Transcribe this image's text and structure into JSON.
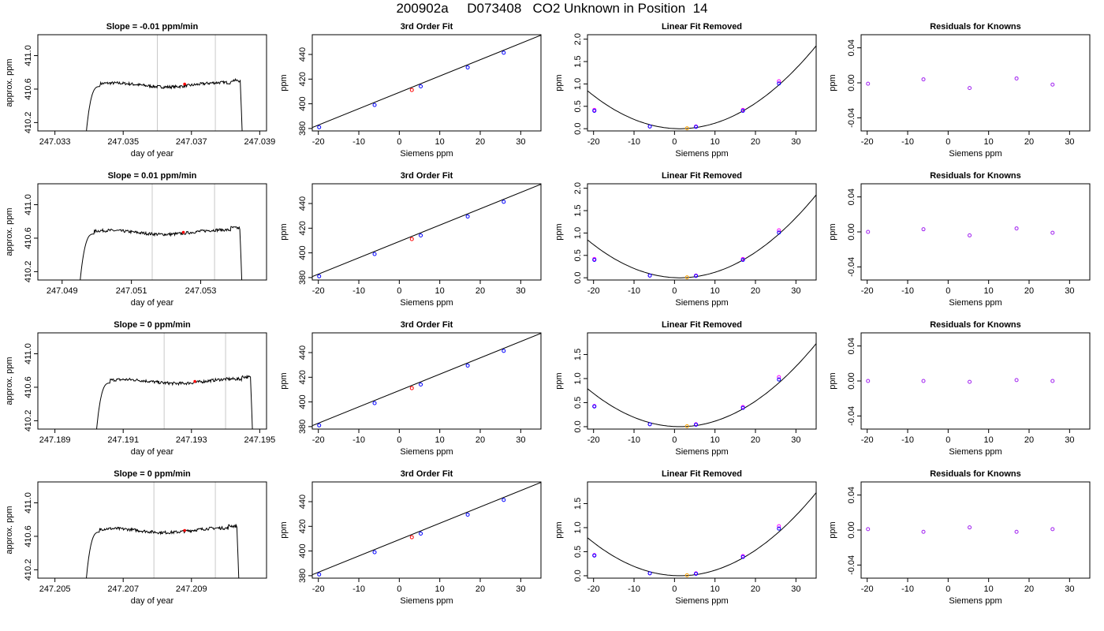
{
  "page_title": "200902a     D073408   CO2 Unknown in Position  14",
  "colors": {
    "trace": "#000000",
    "marker_line": "#c8c8c8",
    "known": "#0000ff",
    "unknown": "#ff0000",
    "residual": "#a020f0",
    "fit_point": "#ff00ff",
    "unknown_fit": "#ffa500"
  },
  "chart_data": [
    {
      "type": "line",
      "row": 1,
      "title": "Slope =  -0.01  ppm/min",
      "xlabel": "day of year",
      "ylabel": "approx. ppm",
      "xlim": [
        247.0325,
        247.0392
      ],
      "ylim": [
        410.1,
        411.25
      ],
      "xticks": [
        247.033,
        247.035,
        247.037,
        247.039
      ],
      "xtick_labels": [
        "247.033",
        "247.035",
        "247.037",
        "247.039"
      ],
      "yticks": [
        410.2,
        410.6,
        411.0
      ],
      "ytick_labels": [
        "410.2",
        "410.6",
        "411.0"
      ],
      "x_start": 247.0339,
      "x_end": 247.0385,
      "plateau": 410.65,
      "vlines": [
        247.036,
        247.0377
      ],
      "marker": {
        "x": 247.0368,
        "y": 410.66
      }
    },
    {
      "type": "line",
      "row": 2,
      "title": "Slope =  0.01  ppm/min",
      "xlabel": "day of year",
      "ylabel": "approx. ppm",
      "xlim": [
        247.0483,
        247.0549
      ],
      "ylim": [
        410.1,
        411.25
      ],
      "xticks": [
        247.049,
        247.051,
        247.053
      ],
      "xtick_labels": [
        "247.049",
        "247.051",
        "247.053"
      ],
      "yticks": [
        410.2,
        410.6,
        411.0
      ],
      "ytick_labels": [
        "410.2",
        "410.6",
        "411.0"
      ],
      "x_start": 247.0495,
      "x_end": 247.0542,
      "plateau": 410.67,
      "vlines": [
        247.0516,
        247.0534
      ],
      "marker": {
        "x": 247.0525,
        "y": 410.67
      }
    },
    {
      "type": "line",
      "row": 3,
      "title": "Slope =  0  ppm/min",
      "xlabel": "day of year",
      "ylabel": "approx. ppm",
      "xlim": [
        247.1885,
        247.1952
      ],
      "ylim": [
        410.1,
        411.25
      ],
      "xticks": [
        247.189,
        247.191,
        247.193,
        247.195
      ],
      "xtick_labels": [
        "247.189",
        "247.191",
        "247.193",
        "247.195"
      ],
      "yticks": [
        410.2,
        410.6,
        411.0
      ],
      "ytick_labels": [
        "410.2",
        "410.6",
        "411.0"
      ],
      "x_start": 247.1902,
      "x_end": 247.1948,
      "plateau": 410.67,
      "vlines": [
        247.1922,
        247.194
      ],
      "marker": {
        "x": 247.1931,
        "y": 410.67
      }
    },
    {
      "type": "line",
      "row": 4,
      "title": "Slope =  0  ppm/min",
      "xlabel": "day of year",
      "ylabel": "approx. ppm",
      "xlim": [
        247.2045,
        247.2112
      ],
      "ylim": [
        410.1,
        411.25
      ],
      "xticks": [
        247.205,
        247.207,
        247.209
      ],
      "xtick_labels": [
        "247.205",
        "247.207",
        "247.209"
      ],
      "yticks": [
        410.2,
        410.6,
        411.0
      ],
      "ytick_labels": [
        "410.2",
        "410.6",
        "411.0"
      ],
      "x_start": 247.2059,
      "x_end": 247.2104,
      "plateau": 410.67,
      "vlines": [
        247.2079,
        247.2097
      ],
      "marker": {
        "x": 247.2088,
        "y": 410.67
      }
    },
    {
      "type": "scatter",
      "row": 1,
      "title": "3rd Order Fit",
      "xlabel": "Siemens ppm",
      "ylabel": "ppm",
      "xlim": [
        -21.5,
        35
      ],
      "ylim": [
        378,
        456
      ],
      "xticks": [
        -20,
        -10,
        0,
        10,
        20,
        30
      ],
      "xtick_labels": [
        "-20",
        "-10",
        "0",
        "10",
        "20",
        "30"
      ],
      "yticks": [
        380,
        400,
        420,
        440
      ],
      "ytick_labels": [
        "380",
        "400",
        "420",
        "440"
      ],
      "line": {
        "x": [
          -21.5,
          35
        ],
        "y": [
          380.8,
          455.6
        ]
      },
      "knowns": {
        "x": [
          -19.8,
          -6.1,
          5.3,
          16.9,
          25.8
        ],
        "y": [
          381.0,
          399.0,
          414.1,
          429.5,
          441.4
        ]
      },
      "unknown": {
        "x": [
          3.1
        ],
        "y": [
          411.2
        ]
      }
    },
    {
      "type": "scatter",
      "row": 2,
      "title": "3rd Order Fit",
      "xlabel": "Siemens ppm",
      "ylabel": "ppm",
      "xlim": [
        -21.5,
        35
      ],
      "ylim": [
        378,
        456
      ],
      "xticks": [
        -20,
        -10,
        0,
        10,
        20,
        30
      ],
      "xtick_labels": [
        "-20",
        "-10",
        "0",
        "10",
        "20",
        "30"
      ],
      "yticks": [
        380,
        400,
        420,
        440
      ],
      "ytick_labels": [
        "380",
        "400",
        "420",
        "440"
      ],
      "line": {
        "x": [
          -21.5,
          35
        ],
        "y": [
          380.8,
          455.6
        ]
      },
      "knowns": {
        "x": [
          -19.8,
          -6.1,
          5.3,
          16.9,
          25.8
        ],
        "y": [
          381.0,
          399.0,
          414.1,
          429.5,
          441.4
        ]
      },
      "unknown": {
        "x": [
          3.1
        ],
        "y": [
          411.2
        ]
      }
    },
    {
      "type": "scatter",
      "row": 3,
      "title": "3rd Order Fit",
      "xlabel": "Siemens ppm",
      "ylabel": "ppm",
      "xlim": [
        -21.5,
        35
      ],
      "ylim": [
        378,
        456
      ],
      "xticks": [
        -20,
        -10,
        0,
        10,
        20,
        30
      ],
      "xtick_labels": [
        "-20",
        "-10",
        "0",
        "10",
        "20",
        "30"
      ],
      "yticks": [
        380,
        400,
        420,
        440
      ],
      "ytick_labels": [
        "380",
        "400",
        "420",
        "440"
      ],
      "line": {
        "x": [
          -21.5,
          35
        ],
        "y": [
          380.8,
          455.6
        ]
      },
      "knowns": {
        "x": [
          -19.8,
          -6.1,
          5.3,
          16.9,
          25.8
        ],
        "y": [
          381.0,
          399.0,
          414.1,
          429.5,
          441.4
        ]
      },
      "unknown": {
        "x": [
          3.1
        ],
        "y": [
          411.2
        ]
      }
    },
    {
      "type": "scatter",
      "row": 4,
      "title": "3rd Order Fit",
      "xlabel": "Siemens ppm",
      "ylabel": "ppm",
      "xlim": [
        -21.5,
        35
      ],
      "ylim": [
        378,
        456
      ],
      "xticks": [
        -20,
        -10,
        0,
        10,
        20,
        30
      ],
      "xtick_labels": [
        "-20",
        "-10",
        "0",
        "10",
        "20",
        "30"
      ],
      "yticks": [
        380,
        400,
        420,
        440
      ],
      "ytick_labels": [
        "380",
        "400",
        "420",
        "440"
      ],
      "line": {
        "x": [
          -21.5,
          35
        ],
        "y": [
          380.8,
          455.6
        ]
      },
      "knowns": {
        "x": [
          -19.8,
          -6.1,
          5.3,
          16.9,
          25.8
        ],
        "y": [
          381.0,
          399.0,
          414.1,
          429.5,
          441.4
        ]
      },
      "unknown": {
        "x": [
          3.1
        ],
        "y": [
          411.2
        ]
      }
    },
    {
      "type": "scatter",
      "row": 1,
      "title": "Linear Fit Removed",
      "xlabel": "Siemens ppm",
      "ylabel": "ppm",
      "xlim": [
        -21.5,
        35
      ],
      "ylim": [
        -0.05,
        2.1
      ],
      "xticks": [
        -20,
        -10,
        0,
        10,
        20,
        30
      ],
      "xtick_labels": [
        "-20",
        "-10",
        "0",
        "10",
        "20",
        "30"
      ],
      "yticks": [
        0.0,
        0.5,
        1.0,
        1.5,
        2.0
      ],
      "ytick_labels": [
        "0.0",
        "0.5",
        "1.0",
        "1.5",
        "2.0"
      ],
      "curve": {
        "x0": 1.3,
        "a": 0.00163
      },
      "knowns": {
        "x": [
          -19.8,
          -6.1,
          5.3,
          16.9,
          25.8
        ],
        "y": [
          0.4,
          0.05,
          0.04,
          0.4,
          1.01
        ]
      },
      "fit_points": {
        "x": [
          -19.8,
          -6.1,
          5.3,
          16.9,
          25.8
        ],
        "y": [
          0.42,
          0.05,
          0.05,
          0.42,
          1.06
        ]
      },
      "unknown": {
        "x": [
          3.1
        ],
        "y": [
          0.01
        ]
      }
    },
    {
      "type": "scatter",
      "row": 2,
      "title": "Linear Fit Removed",
      "xlabel": "Siemens ppm",
      "ylabel": "ppm",
      "xlim": [
        -21.5,
        35
      ],
      "ylim": [
        -0.05,
        2.1
      ],
      "xticks": [
        -20,
        -10,
        0,
        10,
        20,
        30
      ],
      "xtick_labels": [
        "-20",
        "-10",
        "0",
        "10",
        "20",
        "30"
      ],
      "yticks": [
        0.0,
        0.5,
        1.0,
        1.5,
        2.0
      ],
      "ytick_labels": [
        "0.0",
        "0.5",
        "1.0",
        "1.5",
        "2.0"
      ],
      "curve": {
        "x0": 1.3,
        "a": 0.00163
      },
      "knowns": {
        "x": [
          -19.8,
          -6.1,
          5.3,
          16.9,
          25.8
        ],
        "y": [
          0.4,
          0.05,
          0.04,
          0.4,
          1.01
        ]
      },
      "fit_points": {
        "x": [
          -19.8,
          -6.1,
          5.3,
          16.9,
          25.8
        ],
        "y": [
          0.42,
          0.05,
          0.05,
          0.42,
          1.06
        ]
      },
      "unknown": {
        "x": [
          3.1
        ],
        "y": [
          0.01
        ]
      }
    },
    {
      "type": "scatter",
      "row": 3,
      "title": "Linear Fit Removed",
      "xlabel": "Siemens ppm",
      "ylabel": "ppm",
      "xlim": [
        -21.5,
        35
      ],
      "ylim": [
        -0.05,
        1.95
      ],
      "xticks": [
        -20,
        -10,
        0,
        10,
        20,
        30
      ],
      "xtick_labels": [
        "-20",
        "-10",
        "0",
        "10",
        "20",
        "30"
      ],
      "yticks": [
        0.0,
        0.5,
        1.0,
        1.5
      ],
      "ytick_labels": [
        "0.0",
        "0.5",
        "1.0",
        "1.5"
      ],
      "curve": {
        "x0": 1.3,
        "a": 0.00152
      },
      "knowns": {
        "x": [
          -19.8,
          -6.1,
          5.3,
          16.9,
          25.8
        ],
        "y": [
          0.42,
          0.05,
          0.04,
          0.39,
          0.98
        ]
      },
      "fit_points": {
        "x": [
          -19.8,
          -6.1,
          5.3,
          16.9,
          25.8
        ],
        "y": [
          0.43,
          0.05,
          0.05,
          0.41,
          1.03
        ]
      },
      "unknown": {
        "x": [
          3.1
        ],
        "y": [
          0.01
        ]
      }
    },
    {
      "type": "scatter",
      "row": 4,
      "title": "Linear Fit Removed",
      "xlabel": "Siemens ppm",
      "ylabel": "ppm",
      "xlim": [
        -21.5,
        35
      ],
      "ylim": [
        -0.05,
        1.95
      ],
      "xticks": [
        -20,
        -10,
        0,
        10,
        20,
        30
      ],
      "xtick_labels": [
        "-20",
        "-10",
        "0",
        "10",
        "20",
        "30"
      ],
      "yticks": [
        0.0,
        0.5,
        1.0,
        1.5
      ],
      "ytick_labels": [
        "0.0",
        "0.5",
        "1.0",
        "1.5"
      ],
      "curve": {
        "x0": 1.3,
        "a": 0.00152
      },
      "knowns": {
        "x": [
          -19.8,
          -6.1,
          5.3,
          16.9,
          25.8
        ],
        "y": [
          0.42,
          0.05,
          0.04,
          0.39,
          0.98
        ]
      },
      "fit_points": {
        "x": [
          -19.8,
          -6.1,
          5.3,
          16.9,
          25.8
        ],
        "y": [
          0.43,
          0.05,
          0.05,
          0.41,
          1.03
        ]
      },
      "unknown": {
        "x": [
          3.1
        ],
        "y": [
          0.01
        ]
      }
    },
    {
      "type": "scatter",
      "row": 1,
      "title": "Residuals for Knowns",
      "xlabel": "Siemens ppm",
      "ylabel": "ppm",
      "xlim": [
        -21.5,
        35
      ],
      "ylim": [
        -0.055,
        0.055
      ],
      "xticks": [
        -20,
        -10,
        0,
        10,
        20,
        30
      ],
      "xtick_labels": [
        "-20",
        "-10",
        "0",
        "10",
        "20",
        "30"
      ],
      "yticks": [
        -0.04,
        0.0,
        0.04
      ],
      "ytick_labels": [
        "-0.04",
        "0.00",
        "0.04"
      ],
      "residuals": {
        "x": [
          -19.8,
          -6.1,
          5.3,
          16.9,
          25.8
        ],
        "y": [
          -0.001,
          0.004,
          -0.006,
          0.005,
          -0.002
        ]
      }
    },
    {
      "type": "scatter",
      "row": 2,
      "title": "Residuals for Knowns",
      "xlabel": "Siemens ppm",
      "ylabel": "ppm",
      "xlim": [
        -21.5,
        35
      ],
      "ylim": [
        -0.055,
        0.055
      ],
      "xticks": [
        -20,
        -10,
        0,
        10,
        20,
        30
      ],
      "xtick_labels": [
        "-20",
        "-10",
        "0",
        "10",
        "20",
        "30"
      ],
      "yticks": [
        -0.04,
        0.0,
        0.04
      ],
      "ytick_labels": [
        "-0.04",
        "0.00",
        "0.04"
      ],
      "residuals": {
        "x": [
          -19.8,
          -6.1,
          5.3,
          16.9,
          25.8
        ],
        "y": [
          0.0,
          0.003,
          -0.004,
          0.004,
          -0.001
        ]
      }
    },
    {
      "type": "scatter",
      "row": 3,
      "title": "Residuals for Knowns",
      "xlabel": "Siemens ppm",
      "ylabel": "ppm",
      "xlim": [
        -21.5,
        35
      ],
      "ylim": [
        -0.055,
        0.055
      ],
      "xticks": [
        -20,
        -10,
        0,
        10,
        20,
        30
      ],
      "xtick_labels": [
        "-20",
        "-10",
        "0",
        "10",
        "20",
        "30"
      ],
      "yticks": [
        -0.04,
        0.0,
        0.04
      ],
      "ytick_labels": [
        "-0.04",
        "0.00",
        "0.04"
      ],
      "residuals": {
        "x": [
          -19.8,
          -6.1,
          5.3,
          16.9,
          25.8
        ],
        "y": [
          0.0,
          0.0,
          -0.001,
          0.001,
          0.0
        ]
      }
    },
    {
      "type": "scatter",
      "row": 4,
      "title": "Residuals for Knowns",
      "xlabel": "Siemens ppm",
      "ylabel": "ppm",
      "xlim": [
        -21.5,
        35
      ],
      "ylim": [
        -0.055,
        0.055
      ],
      "xticks": [
        -20,
        -10,
        0,
        10,
        20,
        30
      ],
      "xtick_labels": [
        "-20",
        "-10",
        "0",
        "10",
        "20",
        "30"
      ],
      "yticks": [
        -0.04,
        0.0,
        0.04
      ],
      "ytick_labels": [
        "-0.04",
        "0.00",
        "0.04"
      ],
      "residuals": {
        "x": [
          -19.8,
          -6.1,
          5.3,
          16.9,
          25.8
        ],
        "y": [
          0.001,
          -0.002,
          0.003,
          -0.002,
          0.001
        ]
      }
    }
  ]
}
